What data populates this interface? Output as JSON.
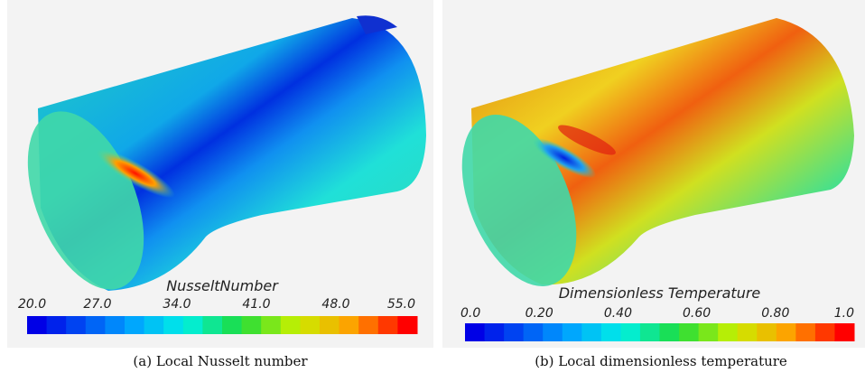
{
  "panels": [
    {
      "colorbar": {
        "title": "NusseltNumber",
        "ticks": [
          "20.0",
          "27.0",
          "34.0",
          "41.0",
          "48.0",
          "55.0"
        ]
      },
      "caption": "(a) Local Nusselt number"
    },
    {
      "colorbar": {
        "title": "Dimensionless Temperature",
        "ticks": [
          "0.0",
          "0.20",
          "0.40",
          "0.60",
          "0.80",
          "1.0"
        ]
      },
      "caption": "(b) Local dimensionless temperature"
    }
  ]
}
